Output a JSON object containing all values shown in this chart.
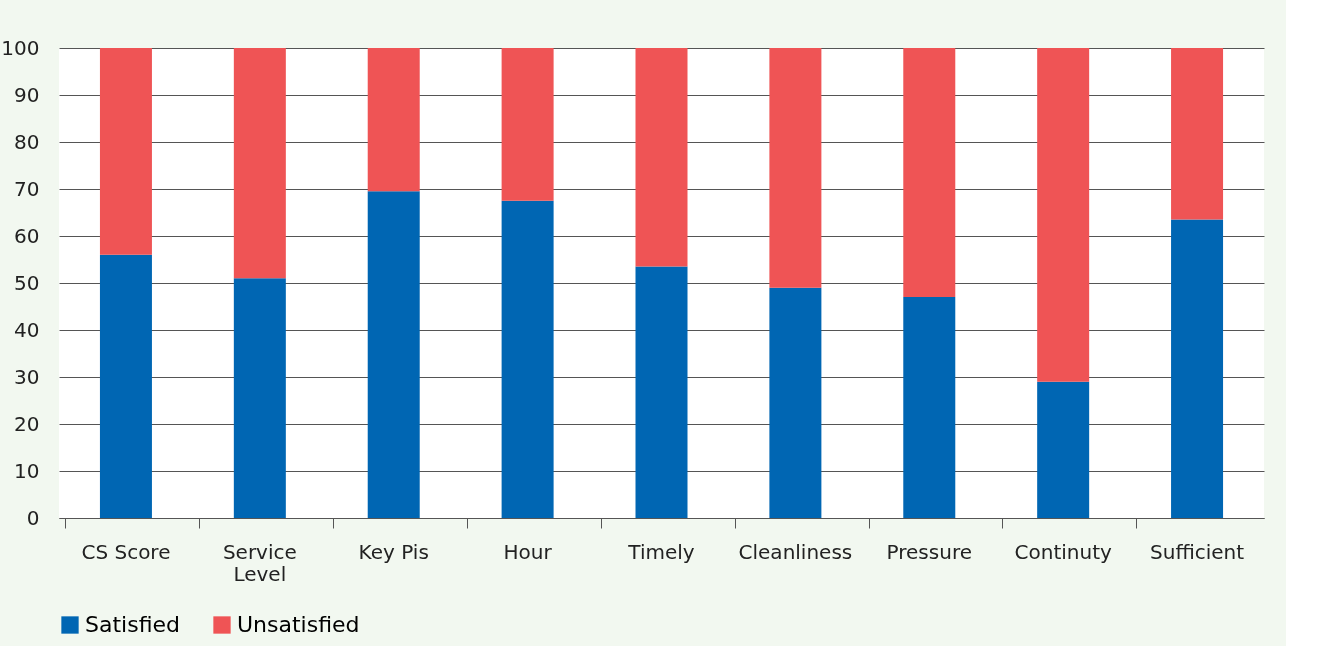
{
  "chart_data": {
    "type": "bar",
    "stacked": true,
    "categories": [
      "CS Score",
      "Service Level",
      "Key Pis",
      "Hour",
      "Timely",
      "Cleanliness",
      "Pressure",
      "Continuty",
      "Sufficient"
    ],
    "series": [
      {
        "name": "Satisfied",
        "color": "#0066b3",
        "values": [
          56,
          51,
          69.5,
          67.5,
          53.5,
          49,
          47,
          29,
          63.5
        ]
      },
      {
        "name": "Unsatisfied",
        "color": "#ef5455",
        "values": [
          44,
          49,
          30.5,
          32.5,
          46.5,
          51,
          53,
          71,
          36.5
        ]
      }
    ],
    "ylim": [
      0,
      100
    ],
    "yticks": [
      0,
      10,
      20,
      30,
      40,
      50,
      60,
      70,
      80,
      90,
      100
    ],
    "grid": "y",
    "legend": "bottom"
  }
}
